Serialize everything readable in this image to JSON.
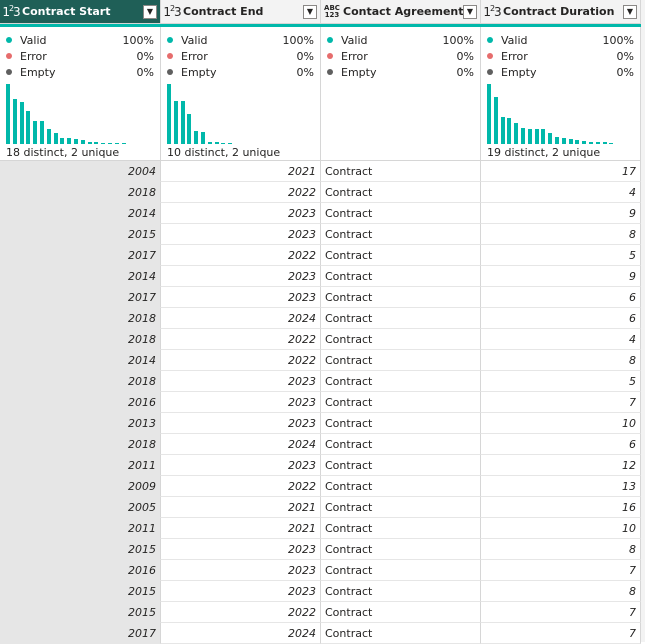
{
  "columns": [
    {
      "name": "Contract Start",
      "type_icon": "whole-number-icon",
      "active": true,
      "valid_label": "Valid",
      "valid_pct": "100%",
      "error_label": "Error",
      "error_pct": "0%",
      "empty_label": "Empty",
      "empty_pct": "0%",
      "distinct_text": "18 distinct, 2 unique",
      "histogram": [
        1.0,
        0.75,
        0.7,
        0.55,
        0.38,
        0.38,
        0.25,
        0.18,
        0.1,
        0.1,
        0.08,
        0.06,
        0.04,
        0.03,
        0.02,
        0.02,
        0.02,
        0.02
      ],
      "values": [
        "2004",
        "2018",
        "2014",
        "2015",
        "2017",
        "2014",
        "2017",
        "2018",
        "2018",
        "2014",
        "2018",
        "2016",
        "2013",
        "2018",
        "2011",
        "2009",
        "2005",
        "2011",
        "2015",
        "2016",
        "2015",
        "2015",
        "2017"
      ]
    },
    {
      "name": "Contract End",
      "type_icon": "whole-number-icon",
      "active": false,
      "valid_label": "Valid",
      "valid_pct": "100%",
      "error_label": "Error",
      "error_pct": "0%",
      "empty_label": "Empty",
      "empty_pct": "0%",
      "distinct_text": "10 distinct, 2 unique",
      "histogram": [
        1.0,
        0.72,
        0.72,
        0.5,
        0.22,
        0.2,
        0.03,
        0.03,
        0.02,
        0.02
      ],
      "values": [
        "2021",
        "2022",
        "2023",
        "2023",
        "2022",
        "2023",
        "2023",
        "2024",
        "2022",
        "2022",
        "2023",
        "2023",
        "2023",
        "2024",
        "2023",
        "2022",
        "2021",
        "2021",
        "2023",
        "2023",
        "2023",
        "2022",
        "2024"
      ]
    },
    {
      "name": "Contact Agreement",
      "type_icon": "any-type-icon",
      "active": false,
      "valid_label": "Valid",
      "valid_pct": "100%",
      "error_label": "Error",
      "error_pct": "0%",
      "empty_label": "Empty",
      "empty_pct": "0%",
      "distinct_text": "",
      "histogram": [],
      "values": [
        "Contract",
        "Contract",
        "Contract",
        "Contract",
        "Contract",
        "Contract",
        "Contract",
        "Contract",
        "Contract",
        "Contract",
        "Contract",
        "Contract",
        "Contract",
        "Contract",
        "Contract",
        "Contract",
        "Contract",
        "Contract",
        "Contract",
        "Contract",
        "Contract",
        "Contract",
        "Contract"
      ]
    },
    {
      "name": "Contract Duration",
      "type_icon": "whole-number-icon",
      "active": false,
      "valid_label": "Valid",
      "valid_pct": "100%",
      "error_label": "Error",
      "error_pct": "0%",
      "empty_label": "Empty",
      "empty_pct": "0%",
      "distinct_text": "19 distinct, 2 unique",
      "histogram": [
        1.0,
        0.78,
        0.45,
        0.43,
        0.35,
        0.27,
        0.25,
        0.25,
        0.25,
        0.18,
        0.12,
        0.1,
        0.08,
        0.07,
        0.05,
        0.04,
        0.03,
        0.03,
        0.02
      ],
      "values": [
        "17",
        "4",
        "9",
        "8",
        "5",
        "9",
        "6",
        "6",
        "4",
        "8",
        "5",
        "7",
        "10",
        "6",
        "12",
        "13",
        "16",
        "10",
        "8",
        "7",
        "8",
        "7",
        "7"
      ]
    }
  ],
  "colors": {
    "active_header": "#1f5f57",
    "teal": "#01b8aa",
    "error_dot": "#e66c6c",
    "empty_dot": "#5f5f5f"
  }
}
